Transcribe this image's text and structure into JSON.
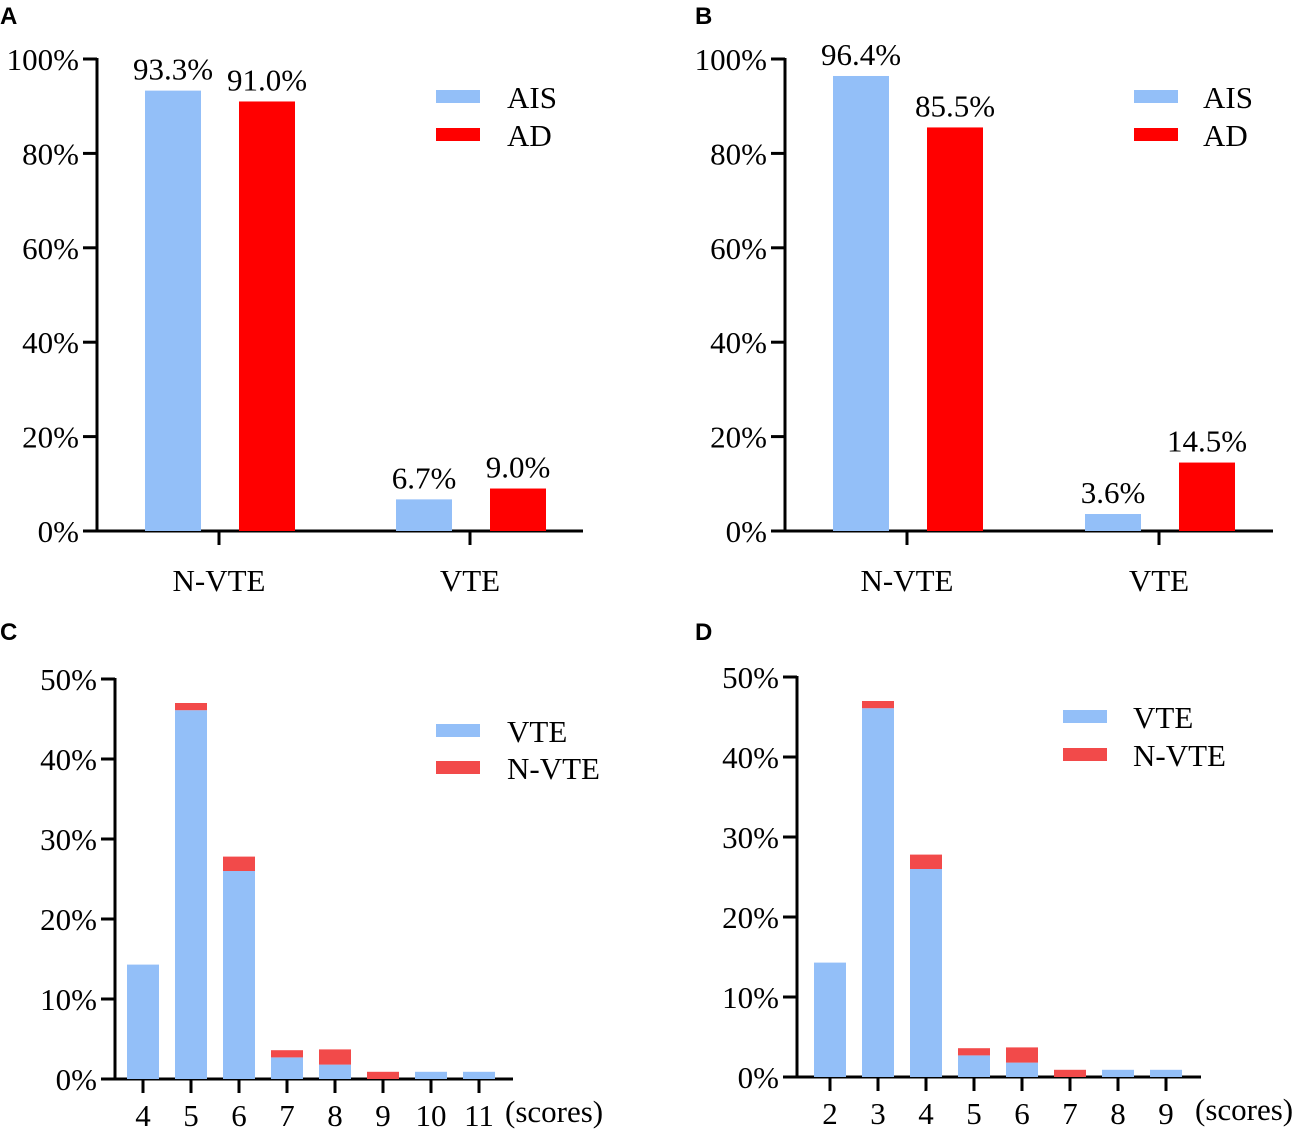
{
  "colors": {
    "ais": "#93bff8",
    "ad": "#ff0000",
    "vte": "#93bff8",
    "nvte": "#f24a4a"
  },
  "chart_data": [
    {
      "panel": "A",
      "type": "bar",
      "categories": [
        "N-VTE",
        "VTE"
      ],
      "series": [
        {
          "name": "AIS",
          "values": [
            93.3,
            6.7
          ],
          "labels": [
            "93.3%",
            "6.7%"
          ]
        },
        {
          "name": "AD",
          "values": [
            91.0,
            9.0
          ],
          "labels": [
            "91.0%",
            "9.0%"
          ]
        }
      ],
      "ylim": [
        0,
        100
      ],
      "yticks": [
        "0%",
        "20%",
        "40%",
        "60%",
        "80%",
        "100%"
      ],
      "xlabel": "",
      "ylabel": "",
      "legend": "top-right"
    },
    {
      "panel": "B",
      "type": "bar",
      "categories": [
        "N-VTE",
        "VTE"
      ],
      "series": [
        {
          "name": "AIS",
          "values": [
            96.4,
            3.6
          ],
          "labels": [
            "96.4%",
            "3.6%"
          ]
        },
        {
          "name": "AD",
          "values": [
            85.5,
            14.5
          ],
          "labels": [
            "85.5%",
            "14.5%"
          ]
        }
      ],
      "ylim": [
        0,
        100
      ],
      "yticks": [
        "0%",
        "20%",
        "40%",
        "60%",
        "80%",
        "100%"
      ],
      "xlabel": "",
      "ylabel": "",
      "legend": "top-right"
    },
    {
      "panel": "C",
      "type": "bar",
      "stacked": true,
      "categories": [
        "4",
        "5",
        "6",
        "7",
        "8",
        "9",
        "10",
        "11"
      ],
      "series": [
        {
          "name": "VTE",
          "values": [
            14.3,
            46.1,
            26.0,
            2.7,
            1.8,
            0.0,
            0.9,
            0.9
          ]
        },
        {
          "name": "N-VTE",
          "values": [
            0.0,
            0.9,
            1.8,
            0.9,
            1.9,
            0.9,
            0.0,
            0.0
          ]
        }
      ],
      "ylim": [
        0,
        50
      ],
      "yticks": [
        "0%",
        "10%",
        "20%",
        "30%",
        "40%",
        "50%"
      ],
      "xlabel": "(scores)",
      "ylabel": "",
      "legend": "top-right"
    },
    {
      "panel": "D",
      "type": "bar",
      "stacked": true,
      "categories": [
        "2",
        "3",
        "4",
        "5",
        "6",
        "7",
        "8",
        "9"
      ],
      "series": [
        {
          "name": "VTE",
          "values": [
            14.3,
            46.1,
            26.0,
            2.7,
            1.8,
            0.0,
            0.9,
            0.9
          ]
        },
        {
          "name": "N-VTE",
          "values": [
            0.0,
            0.9,
            1.8,
            0.9,
            1.9,
            0.9,
            0.0,
            0.0
          ]
        }
      ],
      "ylim": [
        0,
        50
      ],
      "yticks": [
        "0%",
        "10%",
        "20%",
        "30%",
        "40%",
        "50%"
      ],
      "xlabel": "(scores)",
      "ylabel": "",
      "legend": "top-right"
    }
  ]
}
